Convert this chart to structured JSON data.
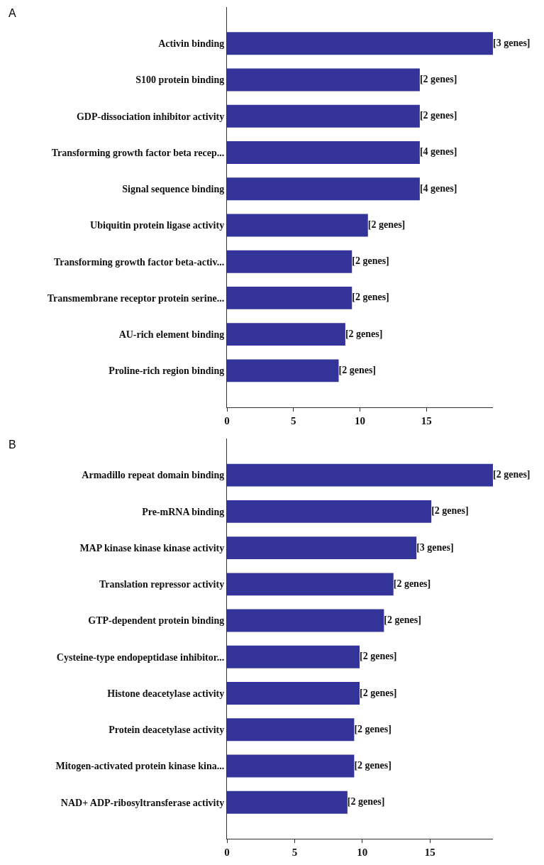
{
  "chart_data": [
    {
      "type": "bar",
      "orientation": "horizontal",
      "title": "A",
      "categories": [
        "Activin binding",
        "S100 protein binding",
        "GDP-dissociation inhibitor activity",
        "Transforming growth factor beta recep...",
        "Signal sequence binding",
        "Ubiquitin protein ligase activity",
        "Transforming growth factor beta-activ...",
        "Transmembrane receptor protein serine...",
        "AU-rich element binding",
        "Proline-rich region binding"
      ],
      "values": [
        20.0,
        14.5,
        14.5,
        14.5,
        14.5,
        10.6,
        9.4,
        9.4,
        8.9,
        8.4
      ],
      "annotations": [
        {
          "text": "[3 genes]",
          "x": 20.0,
          "y": "Activin binding"
        },
        {
          "text": "[2 genes]",
          "x": 14.5,
          "y": "S100 protein binding"
        },
        {
          "text": "[2 genes]",
          "x": 14.5,
          "y": "GDP-dissociation inhibitor activity"
        },
        {
          "text": "[4 genes]",
          "x": 14.5,
          "y": "Transforming growth factor beta recep..."
        },
        {
          "text": "[4 genes]",
          "x": 14.5,
          "y": "Signal sequence binding"
        },
        {
          "text": "[2 genes]",
          "x": 10.6,
          "y": "Ubiquitin protein ligase activity"
        },
        {
          "text": "[2 genes]",
          "x": 9.4,
          "y": "Transforming growth factor beta-activ..."
        },
        {
          "text": "[2 genes]",
          "x": 9.4,
          "y": "Transmembrane receptor protein serine..."
        },
        {
          "text": "[2 genes]",
          "x": 8.9,
          "y": "AU-rich element binding"
        },
        {
          "text": "[2 genes]",
          "x": 8.4,
          "y": "Proline-rich region binding"
        }
      ],
      "color": "#333399",
      "xlim": [
        0,
        20
      ],
      "xticks": [
        0,
        5,
        10,
        15
      ]
    },
    {
      "type": "bar",
      "orientation": "horizontal",
      "title": "B",
      "categories": [
        "Armadillo repeat domain binding",
        "Pre-mRNA binding",
        "MAP kinase kinase kinase activity",
        "Translation repressor activity",
        "GTP-dependent protein binding",
        "Cysteine-type endopeptidase inhibitor...",
        "Histone deacetylase activity",
        "Protein deacetylase activity",
        "Mitogen-activated protein kinase kina...",
        "NAD+ ADP-ribosyltransferase activity"
      ],
      "values": [
        19.65,
        15.1,
        14.0,
        12.3,
        11.6,
        9.8,
        9.8,
        9.4,
        9.4,
        8.9
      ],
      "annotations": [
        {
          "text": "[2 genes]",
          "x": 19.65,
          "y": "Armadillo repeat domain binding"
        },
        {
          "text": "[2 genes]",
          "x": 15.1,
          "y": "Pre-mRNA binding"
        },
        {
          "text": "[3 genes]",
          "x": 14.0,
          "y": "MAP kinase kinase kinase activity"
        },
        {
          "text": "[2 genes]",
          "x": 12.3,
          "y": "Translation repressor activity"
        },
        {
          "text": "[2 genes]",
          "x": 11.6,
          "y": "GTP-dependent protein binding"
        },
        {
          "text": "[2 genes]",
          "x": 9.8,
          "y": "Cysteine-type endopeptidase inhibitor..."
        },
        {
          "text": "[2 genes]",
          "x": 9.8,
          "y": "Histone deacetylase activity"
        },
        {
          "text": "[2 genes]",
          "x": 9.4,
          "y": "Protein deacetylase activity"
        },
        {
          "text": "[2 genes]",
          "x": 9.4,
          "y": "Mitogen-activated protein kinase kina..."
        },
        {
          "text": "[2 genes]",
          "x": 8.9,
          "y": "NAD+ ADP-ribosyltransferase activity"
        }
      ],
      "color": "#333399",
      "xlim": [
        0,
        19.65
      ],
      "xticks": [
        0,
        5,
        10,
        15
      ]
    }
  ]
}
